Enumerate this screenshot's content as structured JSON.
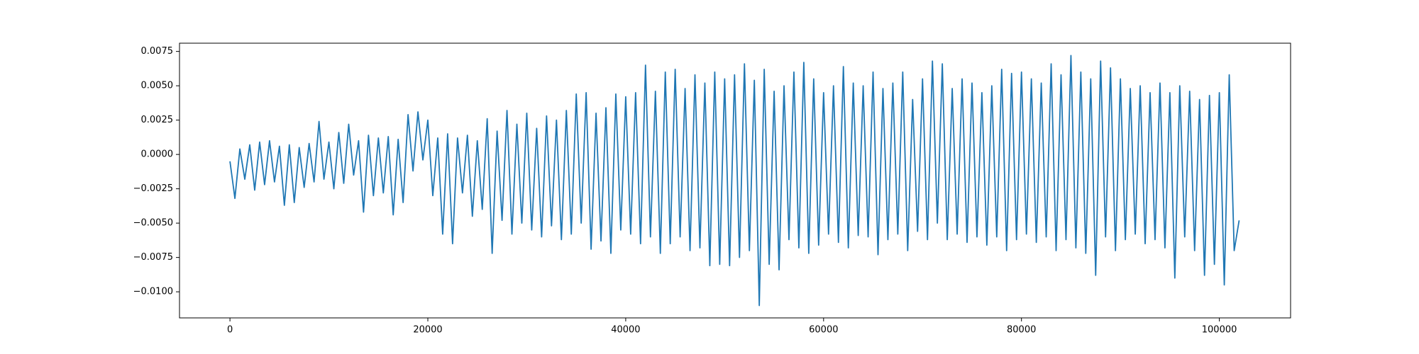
{
  "chart_data": {
    "type": "line",
    "color": "#1f77b4",
    "grid": false,
    "xlim": [
      -5100,
      107200
    ],
    "ylim": [
      -0.0119,
      0.0081
    ],
    "xticks": [
      0,
      20000,
      40000,
      60000,
      80000,
      100000
    ],
    "yticks": [
      {
        "value": 0.0075,
        "label": "0.0075"
      },
      {
        "value": 0.005,
        "label": "0.0050"
      },
      {
        "value": 0.0025,
        "label": "0.0025"
      },
      {
        "value": 0,
        "label": "0.0000"
      },
      {
        "value": -0.0025,
        "label": "−0.0025"
      },
      {
        "value": -0.005,
        "label": "−0.0050"
      },
      {
        "value": -0.0075,
        "label": "−0.0075"
      },
      {
        "value": -0.01,
        "label": "−0.0100"
      }
    ],
    "x": [
      0,
      500,
      1000,
      1500,
      2000,
      2500,
      3000,
      3500,
      4000,
      4500,
      5000,
      5500,
      6000,
      6500,
      7000,
      7500,
      8000,
      8500,
      9000,
      9500,
      10000,
      10500,
      11000,
      11500,
      12000,
      12500,
      13000,
      13500,
      14000,
      14500,
      15000,
      15500,
      16000,
      16500,
      17000,
      17500,
      18000,
      18500,
      19000,
      19500,
      20000,
      20500,
      21000,
      21500,
      22000,
      22500,
      23000,
      23500,
      24000,
      24500,
      25000,
      25500,
      26000,
      26500,
      27000,
      27500,
      28000,
      28500,
      29000,
      29500,
      30000,
      30500,
      31000,
      31500,
      32000,
      32500,
      33000,
      33500,
      34000,
      34500,
      35000,
      35500,
      36000,
      36500,
      37000,
      37500,
      38000,
      38500,
      39000,
      39500,
      40000,
      40500,
      41000,
      41500,
      42000,
      42500,
      43000,
      43500,
      44000,
      44500,
      45000,
      45500,
      46000,
      46500,
      47000,
      47500,
      48000,
      48500,
      49000,
      49500,
      50000,
      50500,
      51000,
      51500,
      52000,
      52500,
      53000,
      53500,
      54000,
      54500,
      55000,
      55500,
      56000,
      56500,
      57000,
      57500,
      58000,
      58500,
      59000,
      59500,
      60000,
      60500,
      61000,
      61500,
      62000,
      62500,
      63000,
      63500,
      64000,
      64500,
      65000,
      65500,
      66000,
      66500,
      67000,
      67500,
      68000,
      68500,
      69000,
      69500,
      70000,
      70500,
      71000,
      71500,
      72000,
      72500,
      73000,
      73500,
      74000,
      74500,
      75000,
      75500,
      76000,
      76500,
      77000,
      77500,
      78000,
      78500,
      79000,
      79500,
      80000,
      80500,
      81000,
      81500,
      82000,
      82500,
      83000,
      83500,
      84000,
      84500,
      85000,
      85500,
      86000,
      86500,
      87000,
      87500,
      88000,
      88500,
      89000,
      89500,
      90000,
      90500,
      91000,
      91500,
      92000,
      92500,
      93000,
      93500,
      94000,
      94500,
      95000,
      95500,
      96000,
      96500,
      97000,
      97500,
      98000,
      98500,
      99000,
      99500,
      100000,
      100500,
      101000,
      101500,
      102000
    ],
    "values": [
      -0.0005,
      -0.0032,
      0.0004,
      -0.0018,
      0.0007,
      -0.0026,
      0.0009,
      -0.0022,
      0.001,
      -0.002,
      0.0006,
      -0.0037,
      0.0007,
      -0.0035,
      0.0005,
      -0.0024,
      0.0008,
      -0.002,
      0.0024,
      -0.0018,
      0.0009,
      -0.0025,
      0.0016,
      -0.0021,
      0.0022,
      -0.0015,
      0.001,
      -0.0042,
      0.0014,
      -0.003,
      0.0012,
      -0.0028,
      0.0013,
      -0.0044,
      0.0011,
      -0.0035,
      0.0029,
      -0.0012,
      0.0031,
      -0.0004,
      0.0025,
      -0.003,
      0.0012,
      -0.0058,
      0.0015,
      -0.0065,
      0.0012,
      -0.0028,
      0.0014,
      -0.0045,
      0.001,
      -0.004,
      0.0026,
      -0.0072,
      0.0017,
      -0.0048,
      0.0032,
      -0.0058,
      0.0022,
      -0.005,
      0.003,
      -0.0055,
      0.0019,
      -0.006,
      0.0028,
      -0.0052,
      0.0025,
      -0.0062,
      0.0032,
      -0.0058,
      0.0044,
      -0.005,
      0.0045,
      -0.0069,
      0.003,
      -0.0063,
      0.0034,
      -0.0072,
      0.0044,
      -0.0055,
      0.0042,
      -0.0058,
      0.0045,
      -0.0065,
      0.0065,
      -0.006,
      0.0046,
      -0.0072,
      0.006,
      -0.0065,
      0.0062,
      -0.006,
      0.0048,
      -0.007,
      0.0058,
      -0.0068,
      0.0052,
      -0.0081,
      0.006,
      -0.008,
      0.0055,
      -0.0081,
      0.0058,
      -0.0075,
      0.0066,
      -0.007,
      0.0054,
      -0.011,
      0.0062,
      -0.008,
      0.0046,
      -0.0084,
      0.005,
      -0.0062,
      0.006,
      -0.0068,
      0.0067,
      -0.0072,
      0.0055,
      -0.0066,
      0.0045,
      -0.0058,
      0.005,
      -0.0064,
      0.0064,
      -0.0068,
      0.0052,
      -0.0059,
      0.005,
      -0.006,
      0.006,
      -0.0073,
      0.0048,
      -0.0062,
      0.0052,
      -0.0058,
      0.006,
      -0.007,
      0.004,
      -0.0056,
      0.0055,
      -0.0062,
      0.0068,
      -0.005,
      0.0066,
      -0.0062,
      0.0048,
      -0.0058,
      0.0055,
      -0.0064,
      0.0052,
      -0.006,
      0.0045,
      -0.0066,
      0.005,
      -0.006,
      0.0062,
      -0.007,
      0.0059,
      -0.0062,
      0.006,
      -0.0058,
      0.0055,
      -0.0064,
      0.0052,
      -0.006,
      0.0066,
      -0.007,
      0.0058,
      -0.0062,
      0.0072,
      -0.0068,
      0.006,
      -0.0072,
      0.0055,
      -0.0088,
      0.0068,
      -0.006,
      0.0063,
      -0.007,
      0.0055,
      -0.0062,
      0.0048,
      -0.0058,
      0.005,
      -0.0065,
      0.0045,
      -0.0062,
      0.0052,
      -0.0068,
      0.0045,
      -0.009,
      0.005,
      -0.006,
      0.0046,
      -0.007,
      0.004,
      -0.0088,
      0.0043,
      -0.008,
      0.0045,
      -0.0095,
      0.0058,
      -0.007,
      -0.0048
    ]
  }
}
